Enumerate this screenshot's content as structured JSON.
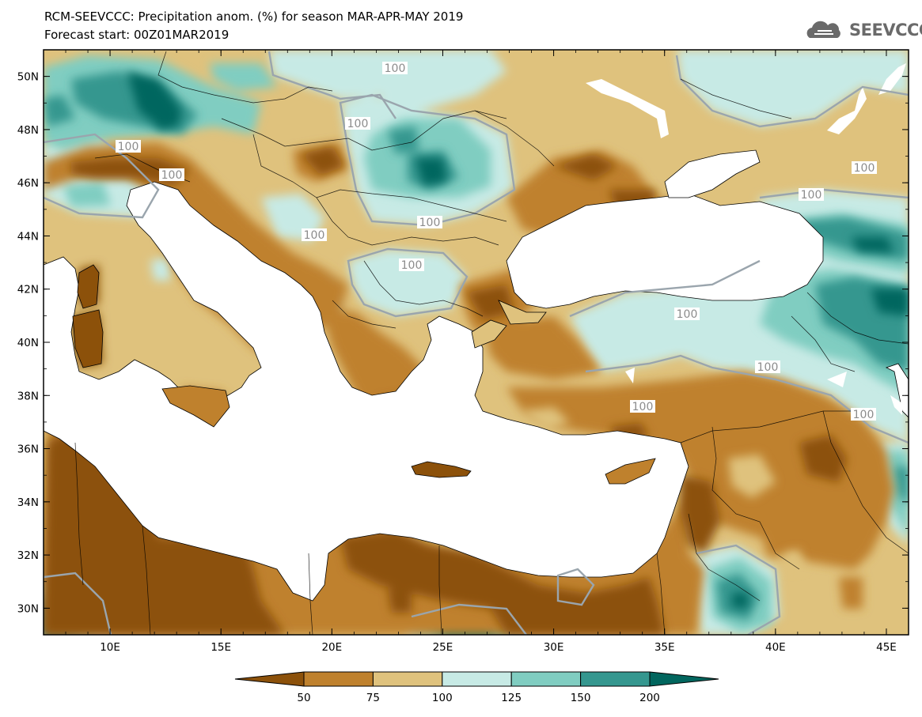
{
  "title": {
    "line1": "RCM-SEEVCCC: Precipitation anom. (%) for season MAR-APR-MAY 2019",
    "line2": "Forecast start: 00Z01MAR2019"
  },
  "logo": {
    "text": "SEEVCCC",
    "icon": "cloud-icon"
  },
  "map": {
    "lon_range": [
      7,
      46
    ],
    "lat_range": [
      29,
      51
    ],
    "lon_ticks": [
      "10E",
      "15E",
      "20E",
      "25E",
      "30E",
      "35E",
      "40E",
      "45E"
    ],
    "lat_ticks": [
      "50N",
      "48N",
      "46N",
      "44N",
      "42N",
      "40N",
      "38N",
      "36N",
      "34N",
      "32N",
      "30N"
    ],
    "contour_label": "100"
  },
  "colorbar": {
    "labels": [
      "50",
      "75",
      "100",
      "125",
      "150",
      "200"
    ],
    "colors": [
      "#8c510a",
      "#bf812d",
      "#dfc27d",
      "#c7eae5",
      "#80cdc1",
      "#35978f",
      "#01665e"
    ]
  }
}
